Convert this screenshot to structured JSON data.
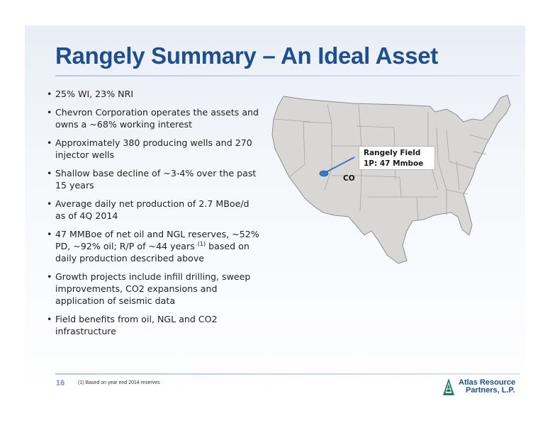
{
  "title": "Rangely Summary – An Ideal Asset",
  "bullets": [
    {
      "text": "25% WI, 23% NRI"
    },
    {
      "text": "Chevron Corporation operates the assets and owns a ~68% working interest"
    },
    {
      "text": "Approximately 380 producing wells and 270 injector wells"
    },
    {
      "text": "Shallow base decline of ~3-4% over the past 15 years"
    },
    {
      "text": "Average daily net production of 2.7 MBoe/d as of 4Q 2014"
    },
    {
      "text": "47 MMBoe of net oil and NGL reserves, ~52% PD, ~92% oil; R/P of ~44 years",
      "footnote_ref": "(1)",
      "tail": " based on daily production described above"
    },
    {
      "text": "Growth projects include infill drilling, sweep improvements, CO2 expansions and application of seismic data"
    },
    {
      "text": "Field benefits from oil, NGL and CO2 infrastructure"
    }
  ],
  "bullet_glyph": "•",
  "map": {
    "callout_line1": "Rangely Field",
    "callout_line2": "1P: 47 Mmboe",
    "state_label": "CO",
    "land_color": "#d9d6d6",
    "border_color": "#8e8e8e",
    "marker_color": "#3d78c6",
    "marker_icon": "location-pin-icon"
  },
  "footer": {
    "page_number": "16",
    "footnote": "(1)  Based on year end 2014 reserves",
    "logo_line1": "Atlas Resource",
    "logo_line2": "Partners, L.P.",
    "logo_icon": "derrick-icon"
  },
  "colors": {
    "title": "#1d4f91",
    "body_text": "#222222",
    "accent_rule": "#b9c9e4"
  }
}
